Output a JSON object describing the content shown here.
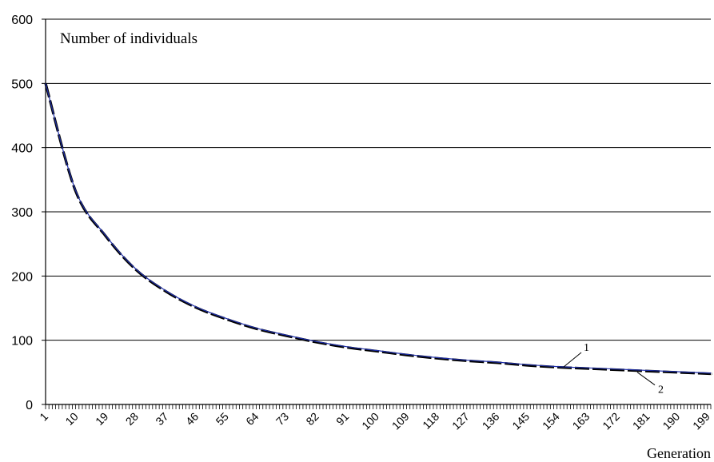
{
  "chart_data": {
    "type": "line",
    "title": "",
    "ylabel": "Number of individuals",
    "xlabel": "Generation",
    "ylim": [
      0,
      600
    ],
    "yticks": [
      0,
      100,
      200,
      300,
      400,
      500,
      600
    ],
    "ytick_labels": [
      "0",
      "100",
      "200",
      "300",
      "400",
      "500",
      "600"
    ],
    "xlim": [
      1,
      200
    ],
    "xtick_labels": [
      "1",
      "10",
      "19",
      "28",
      "37",
      "46",
      "55",
      "64",
      "73",
      "82",
      "91",
      "100",
      "109",
      "118",
      "127",
      "136",
      "145",
      "154",
      "163",
      "172",
      "181",
      "190",
      "199"
    ],
    "grid": "horizontal",
    "legend": "none",
    "x": [
      1,
      10,
      19,
      28,
      37,
      46,
      55,
      64,
      73,
      82,
      91,
      100,
      109,
      118,
      127,
      136,
      145,
      154,
      163,
      172,
      181,
      190,
      199,
      200
    ],
    "series": [
      {
        "name": "1",
        "color": "#1f2fa8",
        "style": "solid",
        "values": [
          500,
          333,
          263,
          211,
          177,
          152,
          134,
          119,
          108,
          98,
          90,
          84,
          78,
          73,
          69,
          66,
          62,
          59,
          57,
          55,
          53,
          51,
          49,
          49
        ]
      },
      {
        "name": "2",
        "color": "#000000",
        "style": "dashed",
        "values": [
          500,
          332,
          262,
          210,
          176,
          151,
          133,
          118,
          107,
          97,
          89,
          83,
          77,
          72,
          68,
          65,
          61,
          58,
          56,
          54,
          52,
          50,
          48,
          48
        ]
      }
    ],
    "annotations": [
      {
        "text": "1",
        "series": "1"
      },
      {
        "text": "2",
        "series": "2"
      }
    ]
  }
}
